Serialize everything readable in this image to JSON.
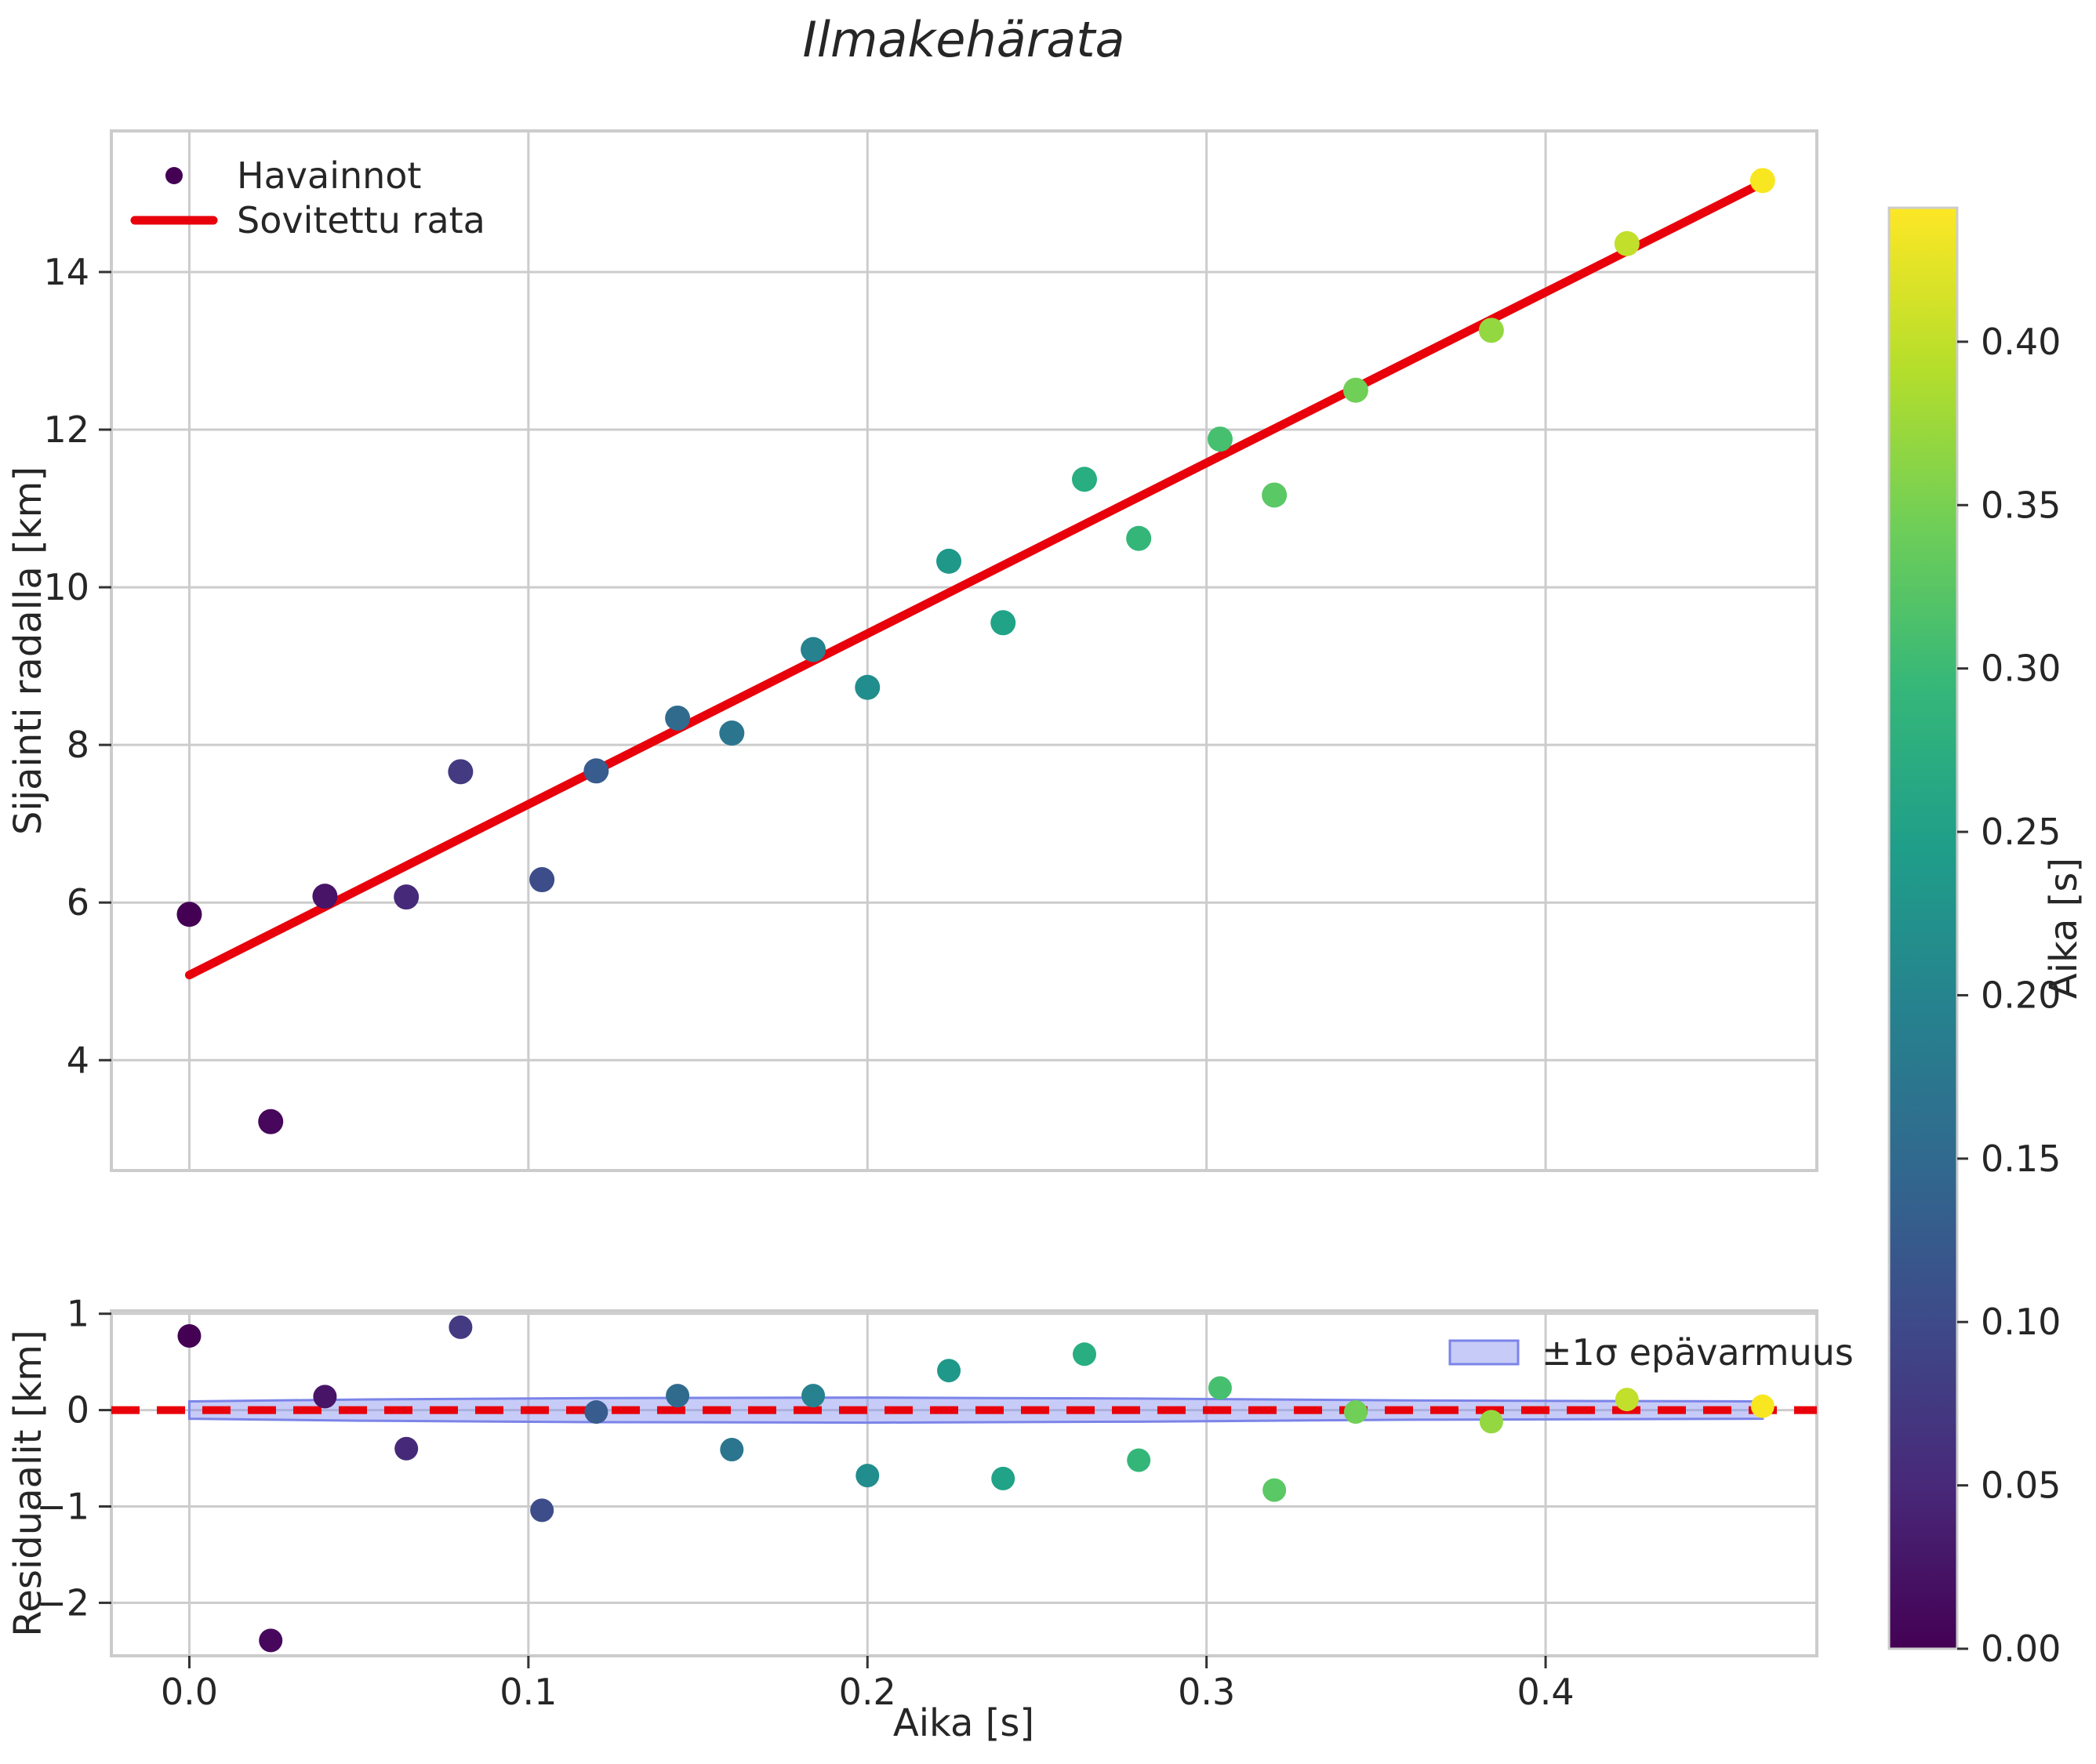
{
  "title": "Ilmakehärata",
  "main_plot": {
    "ylabel": "Sijainti radalla [km]",
    "ytick_labels": [
      "4",
      "6",
      "8",
      "10",
      "12",
      "14"
    ],
    "ytick_values": [
      4,
      6,
      8,
      10,
      12,
      14
    ],
    "legend": {
      "observations_label": "Havainnot",
      "fit_label": "Sovitettu rata"
    }
  },
  "residual_plot": {
    "ylabel": "Residuaalit [km]",
    "xlabel": "Aika [s]",
    "ytick_labels": [
      "1",
      "0",
      "−1",
      "−2"
    ],
    "ytick_values": [
      1,
      0,
      -1,
      -2
    ],
    "xtick_labels": [
      "0.0",
      "0.1",
      "0.2",
      "0.3",
      "0.4"
    ],
    "xtick_values": [
      0,
      0.1,
      0.2,
      0.3,
      0.4
    ],
    "legend_label": "±1σ epävarmuus"
  },
  "colorbar": {
    "label": "Aika [s]",
    "tick_labels": [
      "0.00",
      "0.05",
      "0.10",
      "0.15",
      "0.20",
      "0.25",
      "0.30",
      "0.35",
      "0.40"
    ],
    "tick_values": [
      0,
      0.05,
      0.1,
      0.15,
      0.2,
      0.25,
      0.3,
      0.35,
      0.4
    ],
    "range": [
      0,
      0.441
    ],
    "gradient": [
      "#440154",
      "#482878",
      "#3e4989",
      "#31688e",
      "#26828e",
      "#1f9e89",
      "#35b779",
      "#6ece58",
      "#b5de2b",
      "#fde725"
    ]
  },
  "colors": {
    "fit_line": "#e8000b",
    "zero_line": "#e8000b",
    "grid": "#cccccc",
    "spine": "#cccccc",
    "band_fill": "rgba(130,140,240,0.45)",
    "band_edge": "#7b84e8",
    "legend_marker": "#440154",
    "text": "#262626"
  },
  "chart_data": {
    "type": "scatter",
    "title": "Ilmakehärata",
    "xlabel": "Aika [s]",
    "ylabel": "Sijainti radalla [km]",
    "xlim": [
      -0.023,
      0.48
    ],
    "ylim": [
      2.6,
      15.79
    ],
    "grid": true,
    "series": [
      {
        "name": "Havainnot",
        "type": "scatter",
        "colormap": "viridis",
        "color_by": "Aika [s]",
        "points": [
          {
            "t": 0.0,
            "y": 5.85,
            "resid": 0.77,
            "color": "#440154"
          },
          {
            "t": 0.024,
            "y": 3.22,
            "resid": -2.39,
            "color": "#46075c"
          },
          {
            "t": 0.04,
            "y": 6.08,
            "resid": 0.14,
            "color": "#481467"
          },
          {
            "t": 0.064,
            "y": 6.07,
            "resid": -0.4,
            "color": "#462a79"
          },
          {
            "t": 0.08,
            "y": 7.66,
            "resid": 0.86,
            "color": "#433a82"
          },
          {
            "t": 0.104,
            "y": 6.29,
            "resid": -1.04,
            "color": "#3d4d8a"
          },
          {
            "t": 0.12,
            "y": 7.67,
            "resid": -0.02,
            "color": "#375c8d"
          },
          {
            "t": 0.144,
            "y": 8.34,
            "resid": 0.15,
            "color": "#306b8e"
          },
          {
            "t": 0.16,
            "y": 8.15,
            "resid": -0.41,
            "color": "#2b768e"
          },
          {
            "t": 0.184,
            "y": 9.21,
            "resid": 0.15,
            "color": "#26828e"
          },
          {
            "t": 0.2,
            "y": 8.73,
            "resid": -0.68,
            "color": "#228d8d"
          },
          {
            "t": 0.224,
            "y": 10.33,
            "resid": 0.41,
            "color": "#1f988a"
          },
          {
            "t": 0.24,
            "y": 9.55,
            "resid": -0.71,
            "color": "#20a386"
          },
          {
            "t": 0.264,
            "y": 11.37,
            "resid": 0.58,
            "color": "#28ae80"
          },
          {
            "t": 0.28,
            "y": 10.62,
            "resid": -0.52,
            "color": "#34b679"
          },
          {
            "t": 0.304,
            "y": 11.88,
            "resid": 0.23,
            "color": "#46c06f"
          },
          {
            "t": 0.32,
            "y": 11.17,
            "resid": -0.83,
            "color": "#5ac864"
          },
          {
            "t": 0.344,
            "y": 12.5,
            "resid": -0.02,
            "color": "#70cf57"
          },
          {
            "t": 0.384,
            "y": 13.26,
            "resid": -0.12,
            "color": "#94d841"
          },
          {
            "t": 0.424,
            "y": 14.36,
            "resid": 0.11,
            "color": "#c2df2b"
          },
          {
            "t": 0.464,
            "y": 15.16,
            "resid": 0.04,
            "color": "#f8e621"
          }
        ]
      },
      {
        "name": "Sovitettu rata",
        "type": "line",
        "color": "#e8000b",
        "fit": {
          "intercept": 5.08,
          "slope": 21.66,
          "t_start": 0.0,
          "t_end": 0.464
        }
      }
    ],
    "residuals": {
      "ylabel": "Residuaalit [km]",
      "ylim": [
        -2.55,
        1.03
      ],
      "zero_line": 0,
      "band": {
        "label": "±1σ epävarmuus",
        "half_width_profile": [
          {
            "t": 0.0,
            "hw": 0.09
          },
          {
            "t": 0.05,
            "hw": 0.11
          },
          {
            "t": 0.12,
            "hw": 0.125
          },
          {
            "t": 0.2,
            "hw": 0.13
          },
          {
            "t": 0.28,
            "hw": 0.12
          },
          {
            "t": 0.36,
            "hw": 0.1
          },
          {
            "t": 0.464,
            "hw": 0.09
          }
        ]
      }
    }
  }
}
